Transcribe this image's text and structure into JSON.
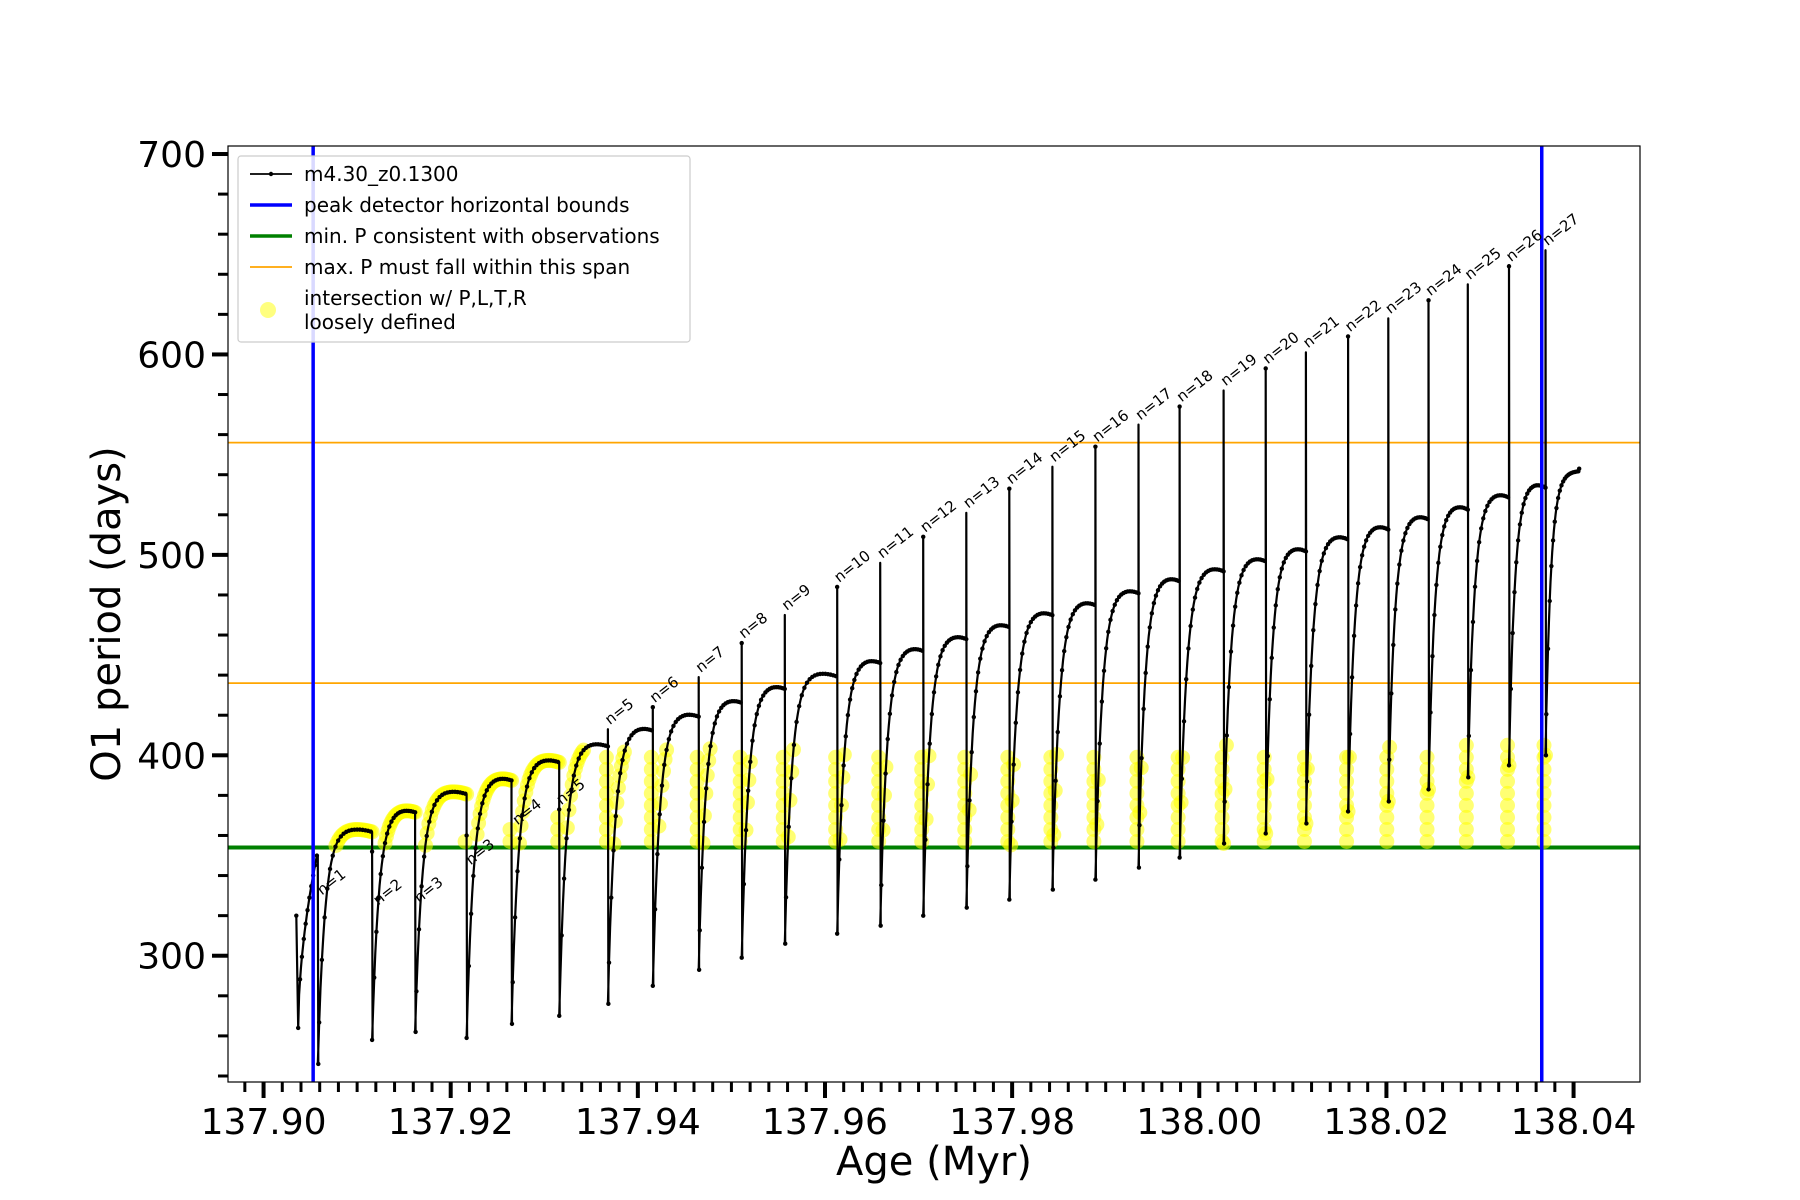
{
  "chart_data": {
    "type": "line",
    "title": "",
    "xlabel": "Age (Myr)",
    "ylabel": "O1 period (days)",
    "xlim": [
      137.8962,
      138.0471
    ],
    "ylim": [
      237,
      704
    ],
    "xticks": [
      137.9,
      137.92,
      137.94,
      137.96,
      137.98,
      138.0,
      138.02,
      138.04
    ],
    "xtick_labels": [
      "137.90",
      "137.92",
      "137.94",
      "137.96",
      "137.98",
      "138.00",
      "138.02",
      "138.04"
    ],
    "yticks": [
      300,
      400,
      500,
      600,
      700
    ],
    "ytick_labels": [
      "300",
      "400",
      "500",
      "600",
      "700"
    ],
    "grid": false,
    "legend_position": "top-left",
    "colors": {
      "track": "#000000",
      "bounds": "#0000ff",
      "min_period": "#008000",
      "max_period": "#ffa500",
      "intersection": "#ffff00"
    },
    "legend": [
      {
        "key": "track",
        "label": "m4.30_z0.1300"
      },
      {
        "key": "bounds",
        "label": "peak detector horizontal bounds"
      },
      {
        "key": "min_period",
        "label": "min. P consistent with observations"
      },
      {
        "key": "max_period",
        "label": "max. P must fall within this span"
      },
      {
        "key": "intersection",
        "label_lines": [
          "intersection w/ P,L,T,R",
          "loosely defined"
        ]
      }
    ],
    "vertical_bounds": [
      137.9053,
      138.0366
    ],
    "min_period_line": 354,
    "max_period_span": [
      436,
      556
    ],
    "track_start": {
      "age": 137.9035,
      "period": 320
    },
    "track_end": {
      "age": 138.0406,
      "period": 543
    },
    "pulses": [
      {
        "label": "n=1",
        "age": 137.9058,
        "spike": 350,
        "min": 246,
        "plateau": 364
      },
      {
        "label": "n=2",
        "age": 137.9116,
        "spike": 352,
        "min": 258,
        "plateau": 374
      },
      {
        "label": "n=3",
        "age": 137.9162,
        "spike": 356,
        "min": 262,
        "plateau": 383
      },
      {
        "label": "n=3",
        "age": 137.9217,
        "spike": 360,
        "min": 259,
        "plateau": 390
      },
      {
        "label": "n=4",
        "age": 137.9265,
        "spike": 366,
        "min": 266,
        "plateau": 399
      },
      {
        "label": "n=5",
        "age": 137.9316,
        "spike": 373,
        "min": 270,
        "plateau": 407
      },
      {
        "label": "n=5",
        "age": 137.9368,
        "spike": 413,
        "min": 276,
        "plateau": 415
      },
      {
        "label": "n=6",
        "age": 137.9416,
        "spike": 424,
        "min": 285,
        "plateau": 422
      },
      {
        "label": "n=7",
        "age": 137.9465,
        "spike": 439,
        "min": 293,
        "plateau": 429
      },
      {
        "label": "n=8",
        "age": 137.9511,
        "spike": 456,
        "min": 299,
        "plateau": 436
      },
      {
        "label": "n=9",
        "age": 137.9557,
        "spike": 470,
        "min": 306,
        "plateau": 442
      },
      {
        "label": "n=10",
        "age": 137.9613,
        "spike": 484,
        "min": 311,
        "plateau": 449
      },
      {
        "label": "n=11",
        "age": 137.9659,
        "spike": 496,
        "min": 315,
        "plateau": 455
      },
      {
        "label": "n=12",
        "age": 137.9705,
        "spike": 509,
        "min": 320,
        "plateau": 461
      },
      {
        "label": "n=13",
        "age": 137.9751,
        "spike": 521,
        "min": 324,
        "plateau": 467
      },
      {
        "label": "n=14",
        "age": 137.9797,
        "spike": 533,
        "min": 328,
        "plateau": 473
      },
      {
        "label": "n=15",
        "age": 137.9843,
        "spike": 544,
        "min": 333,
        "plateau": 478
      },
      {
        "label": "n=16",
        "age": 137.9889,
        "spike": 554,
        "min": 338,
        "plateau": 484
      },
      {
        "label": "n=17",
        "age": 137.9935,
        "spike": 565,
        "min": 344,
        "plateau": 490
      },
      {
        "label": "n=18",
        "age": 137.9979,
        "spike": 574,
        "min": 349,
        "plateau": 495
      },
      {
        "label": "n=19",
        "age": 138.0026,
        "spike": 582,
        "min": 356,
        "plateau": 500
      },
      {
        "label": "n=20",
        "age": 138.0071,
        "spike": 593,
        "min": 361,
        "plateau": 505
      },
      {
        "label": "n=21",
        "age": 138.0114,
        "spike": 601,
        "min": 366,
        "plateau": 511
      },
      {
        "label": "n=22",
        "age": 138.0159,
        "spike": 609,
        "min": 372,
        "plateau": 516
      },
      {
        "label": "n=23",
        "age": 138.0202,
        "spike": 618,
        "min": 377,
        "plateau": 521
      },
      {
        "label": "n=24",
        "age": 138.0245,
        "spike": 627,
        "min": 383,
        "plateau": 526
      },
      {
        "label": "n=25",
        "age": 138.0287,
        "spike": 635,
        "min": 389,
        "plateau": 532
      },
      {
        "label": "n=26",
        "age": 138.0331,
        "spike": 644,
        "min": 395,
        "plateau": 537
      },
      {
        "label": "n=27",
        "age": 138.037,
        "spike": 652,
        "min": 400,
        "plateau": 542
      }
    ]
  }
}
